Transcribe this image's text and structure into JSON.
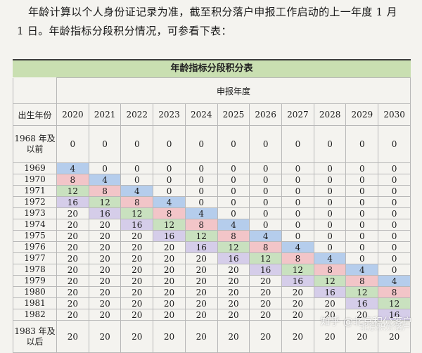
{
  "intro": {
    "line1": "年龄计算以个人身份证记录为准，截至积分落户申报工作启动的上一年度 1 月",
    "line2": "1 日。年龄指标分段积分情况，可参看下表："
  },
  "table": {
    "title": "年龄指标分段积分表",
    "col_group_header": "申报年度",
    "row_header": "出生年份",
    "years": [
      "2020",
      "2021",
      "2022",
      "2023",
      "2024",
      "2025",
      "2026",
      "2027",
      "2028",
      "2029",
      "2030"
    ],
    "rows": [
      {
        "label": "1968 年及以前",
        "values": [
          0,
          0,
          0,
          0,
          0,
          0,
          0,
          0,
          0,
          0,
          0
        ]
      },
      {
        "label": "1969",
        "values": [
          4,
          0,
          0,
          0,
          0,
          0,
          0,
          0,
          0,
          0,
          0
        ]
      },
      {
        "label": "1970",
        "values": [
          8,
          4,
          0,
          0,
          0,
          0,
          0,
          0,
          0,
          0,
          0
        ]
      },
      {
        "label": "1971",
        "values": [
          12,
          8,
          4,
          0,
          0,
          0,
          0,
          0,
          0,
          0,
          0
        ]
      },
      {
        "label": "1972",
        "values": [
          16,
          12,
          8,
          4,
          0,
          0,
          0,
          0,
          0,
          0,
          0
        ]
      },
      {
        "label": "1973",
        "values": [
          20,
          16,
          12,
          8,
          4,
          0,
          0,
          0,
          0,
          0,
          0
        ]
      },
      {
        "label": "1974",
        "values": [
          20,
          20,
          16,
          12,
          8,
          4,
          0,
          0,
          0,
          0,
          0
        ]
      },
      {
        "label": "1975",
        "values": [
          20,
          20,
          20,
          16,
          12,
          8,
          4,
          0,
          0,
          0,
          0
        ]
      },
      {
        "label": "1976",
        "values": [
          20,
          20,
          20,
          20,
          16,
          12,
          8,
          4,
          0,
          0,
          0
        ]
      },
      {
        "label": "1977",
        "values": [
          20,
          20,
          20,
          20,
          20,
          16,
          12,
          8,
          4,
          0,
          0
        ]
      },
      {
        "label": "1978",
        "values": [
          20,
          20,
          20,
          20,
          20,
          20,
          16,
          12,
          8,
          4,
          0
        ]
      },
      {
        "label": "1979",
        "values": [
          20,
          20,
          20,
          20,
          20,
          20,
          20,
          16,
          12,
          8,
          4
        ]
      },
      {
        "label": "1980",
        "values": [
          20,
          20,
          20,
          20,
          20,
          20,
          20,
          20,
          16,
          12,
          8
        ]
      },
      {
        "label": "1981",
        "values": [
          20,
          20,
          20,
          20,
          20,
          20,
          20,
          20,
          20,
          16,
          12
        ]
      },
      {
        "label": "1982",
        "values": [
          20,
          20,
          20,
          20,
          20,
          20,
          20,
          20,
          20,
          20,
          16
        ]
      },
      {
        "label": "1983 年及以后",
        "values": [
          20,
          20,
          20,
          20,
          20,
          20,
          20,
          20,
          20,
          20,
          20
        ]
      }
    ]
  },
  "watermark": {
    "text": "知乎 @北京积分落户",
    "text2": "北京积分落户"
  },
  "colors": {
    "title_bg": "#c9dfb1",
    "score_4": "#b5cdec",
    "score_8": "#f2c5c8",
    "score_12": "#c9e1bf",
    "score_16": "#d5cde9"
  }
}
